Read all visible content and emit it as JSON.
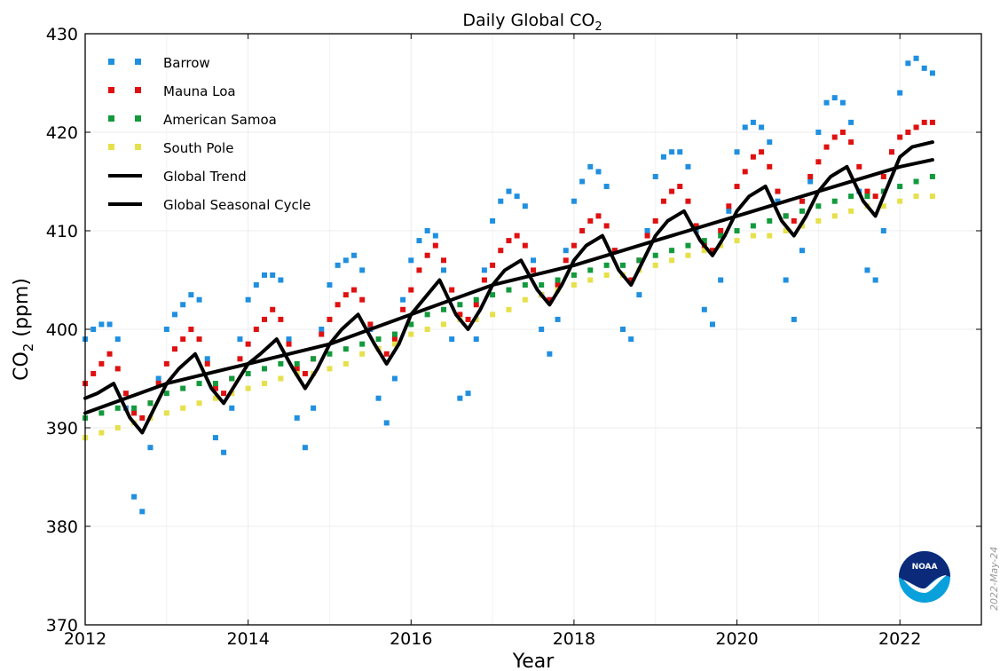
{
  "chart_data": {
    "type": "scatter",
    "title": "Daily Global CO",
    "title_subscript": "2",
    "xlabel": "Year",
    "ylabel": "CO",
    "ylabel_subscript": "2",
    "ylabel_unit": "(ppm)",
    "xlim": [
      2012,
      2023
    ],
    "ylim": [
      370,
      430
    ],
    "x_ticks": [
      2012,
      2014,
      2016,
      2018,
      2020,
      2022
    ],
    "y_ticks": [
      370,
      380,
      390,
      400,
      410,
      420,
      430
    ],
    "grid": true,
    "legend_position": "top-left",
    "date_stamp": "2022-May-24",
    "logo": "NOAA",
    "series": [
      {
        "name": "Barrow",
        "kind": "points",
        "color": "#1f8fe0",
        "x": [
          2012.0,
          2012.1,
          2012.2,
          2012.3,
          2012.4,
          2012.5,
          2012.6,
          2012.7,
          2012.8,
          2012.9,
          2013.0,
          2013.1,
          2013.2,
          2013.3,
          2013.4,
          2013.5,
          2013.6,
          2013.7,
          2013.8,
          2013.9,
          2014.0,
          2014.1,
          2014.2,
          2014.3,
          2014.4,
          2014.5,
          2014.6,
          2014.7,
          2014.8,
          2014.9,
          2015.0,
          2015.1,
          2015.2,
          2015.3,
          2015.4,
          2015.5,
          2015.6,
          2015.7,
          2015.8,
          2015.9,
          2016.0,
          2016.1,
          2016.2,
          2016.3,
          2016.4,
          2016.5,
          2016.6,
          2016.7,
          2016.8,
          2016.9,
          2017.0,
          2017.1,
          2017.2,
          2017.3,
          2017.4,
          2017.5,
          2017.6,
          2017.7,
          2017.8,
          2017.9,
          2018.0,
          2018.1,
          2018.2,
          2018.3,
          2018.4,
          2018.5,
          2018.6,
          2018.7,
          2018.8,
          2018.9,
          2019.0,
          2019.1,
          2019.2,
          2019.3,
          2019.4,
          2019.5,
          2019.6,
          2019.7,
          2019.8,
          2019.9,
          2020.0,
          2020.1,
          2020.2,
          2020.3,
          2020.4,
          2020.5,
          2020.6,
          2020.7,
          2020.8,
          2020.9,
          2021.0,
          2021.1,
          2021.2,
          2021.3,
          2021.4,
          2021.5,
          2021.6,
          2021.7,
          2021.8,
          2021.9,
          2022.0,
          2022.1,
          2022.2,
          2022.3,
          2022.4
        ],
        "y": [
          399.0,
          400.0,
          400.5,
          400.5,
          399.0,
          392.0,
          383.0,
          381.5,
          388.0,
          395.0,
          400.0,
          401.5,
          402.5,
          403.5,
          403.0,
          397.0,
          389.0,
          387.5,
          392.0,
          399.0,
          403.0,
          404.5,
          405.5,
          405.5,
          405.0,
          399.0,
          391.0,
          388.0,
          392.0,
          400.0,
          404.5,
          406.5,
          407.0,
          407.5,
          406.0,
          400.0,
          393.0,
          390.5,
          395.0,
          403.0,
          407.0,
          409.0,
          410.0,
          409.5,
          406.0,
          399.0,
          393.0,
          393.5,
          399.0,
          406.0,
          411.0,
          413.0,
          414.0,
          413.5,
          412.5,
          407.0,
          400.0,
          397.5,
          401.0,
          408.0,
          413.0,
          415.0,
          416.5,
          416.0,
          414.5,
          408.0,
          400.0,
          399.0,
          403.5,
          410.0,
          415.5,
          417.5,
          418.0,
          418.0,
          416.5,
          410.0,
          402.0,
          400.5,
          405.0,
          412.0,
          418.0,
          420.5,
          421.0,
          420.5,
          419.0,
          413.0,
          405.0,
          401.0,
          408.0,
          415.0,
          420.0,
          423.0,
          423.5,
          423.0,
          421.0,
          414.0,
          406.0,
          405.0,
          410.0,
          418.0,
          424.0,
          427.0,
          427.5,
          426.5,
          426.0
        ]
      },
      {
        "name": "Mauna Loa",
        "kind": "points",
        "color": "#e01010",
        "x": [
          2012.0,
          2012.1,
          2012.2,
          2012.3,
          2012.4,
          2012.5,
          2012.6,
          2012.7,
          2012.8,
          2012.9,
          2013.0,
          2013.1,
          2013.2,
          2013.3,
          2013.4,
          2013.5,
          2013.6,
          2013.7,
          2013.8,
          2013.9,
          2014.0,
          2014.1,
          2014.2,
          2014.3,
          2014.4,
          2014.5,
          2014.6,
          2014.7,
          2014.8,
          2014.9,
          2015.0,
          2015.1,
          2015.2,
          2015.3,
          2015.4,
          2015.5,
          2015.6,
          2015.7,
          2015.8,
          2015.9,
          2016.0,
          2016.1,
          2016.2,
          2016.3,
          2016.4,
          2016.5,
          2016.6,
          2016.7,
          2016.8,
          2016.9,
          2017.0,
          2017.1,
          2017.2,
          2017.3,
          2017.4,
          2017.5,
          2017.6,
          2017.7,
          2017.8,
          2017.9,
          2018.0,
          2018.1,
          2018.2,
          2018.3,
          2018.4,
          2018.5,
          2018.6,
          2018.7,
          2018.8,
          2018.9,
          2019.0,
          2019.1,
          2019.2,
          2019.3,
          2019.4,
          2019.5,
          2019.6,
          2019.7,
          2019.8,
          2019.9,
          2020.0,
          2020.1,
          2020.2,
          2020.3,
          2020.4,
          2020.5,
          2020.6,
          2020.7,
          2020.8,
          2020.9,
          2021.0,
          2021.1,
          2021.2,
          2021.3,
          2021.4,
          2021.5,
          2021.6,
          2021.7,
          2021.8,
          2021.9,
          2022.0,
          2022.1,
          2022.2,
          2022.3,
          2022.4
        ],
        "y": [
          394.5,
          395.5,
          396.5,
          397.5,
          396.0,
          393.5,
          391.5,
          391.0,
          392.5,
          394.5,
          396.5,
          398.0,
          399.0,
          400.0,
          399.0,
          396.5,
          394.0,
          393.5,
          395.0,
          397.0,
          398.5,
          400.0,
          401.0,
          402.0,
          401.0,
          398.5,
          396.0,
          395.5,
          397.0,
          399.5,
          401.0,
          402.5,
          403.5,
          404.0,
          403.0,
          400.5,
          398.0,
          397.5,
          399.0,
          402.0,
          404.0,
          406.0,
          407.5,
          408.5,
          407.0,
          404.0,
          401.5,
          401.0,
          402.5,
          405.0,
          406.5,
          408.0,
          409.0,
          409.5,
          408.5,
          406.0,
          403.5,
          403.0,
          404.5,
          407.0,
          408.5,
          410.0,
          411.0,
          411.5,
          410.5,
          408.0,
          405.5,
          405.0,
          407.0,
          409.5,
          411.0,
          413.0,
          414.0,
          414.5,
          413.0,
          410.5,
          408.5,
          408.0,
          410.0,
          412.5,
          414.5,
          416.0,
          417.5,
          418.0,
          416.5,
          414.0,
          411.5,
          411.0,
          413.0,
          415.5,
          417.0,
          418.5,
          419.5,
          420.0,
          419.0,
          416.5,
          414.0,
          413.5,
          415.5,
          418.0,
          419.5,
          420.0,
          420.5,
          421.0,
          421.0
        ]
      },
      {
        "name": "American Samoa",
        "kind": "points",
        "color": "#129a3c",
        "x": [
          2012.0,
          2012.2,
          2012.4,
          2012.6,
          2012.8,
          2013.0,
          2013.2,
          2013.4,
          2013.6,
          2013.8,
          2014.0,
          2014.2,
          2014.4,
          2014.6,
          2014.8,
          2015.0,
          2015.2,
          2015.4,
          2015.6,
          2015.8,
          2016.0,
          2016.2,
          2016.4,
          2016.6,
          2016.8,
          2017.0,
          2017.2,
          2017.4,
          2017.6,
          2017.8,
          2018.0,
          2018.2,
          2018.4,
          2018.6,
          2018.8,
          2019.0,
          2019.2,
          2019.4,
          2019.6,
          2019.8,
          2020.0,
          2020.2,
          2020.4,
          2020.6,
          2020.8,
          2021.0,
          2021.2,
          2021.4,
          2021.6,
          2021.8,
          2022.0,
          2022.2,
          2022.4
        ],
        "y": [
          391.0,
          391.5,
          392.0,
          392.0,
          392.5,
          393.5,
          394.0,
          394.5,
          394.5,
          395.0,
          395.5,
          396.0,
          396.5,
          396.5,
          397.0,
          397.5,
          398.0,
          398.5,
          399.0,
          399.5,
          400.5,
          401.5,
          402.0,
          402.5,
          403.0,
          403.5,
          404.0,
          404.5,
          404.5,
          405.0,
          405.5,
          406.0,
          406.5,
          406.5,
          407.0,
          407.5,
          408.0,
          408.5,
          409.0,
          409.5,
          410.0,
          410.5,
          411.0,
          411.5,
          412.0,
          412.5,
          413.0,
          413.5,
          413.5,
          414.0,
          414.5,
          415.0,
          415.5
        ]
      },
      {
        "name": "South Pole",
        "kind": "points",
        "color": "#e6e04a",
        "x": [
          2012.0,
          2012.2,
          2012.4,
          2012.6,
          2012.8,
          2013.0,
          2013.2,
          2013.4,
          2013.6,
          2013.8,
          2014.0,
          2014.2,
          2014.4,
          2014.6,
          2014.8,
          2015.0,
          2015.2,
          2015.4,
          2015.6,
          2015.8,
          2016.0,
          2016.2,
          2016.4,
          2016.6,
          2016.8,
          2017.0,
          2017.2,
          2017.4,
          2017.6,
          2017.8,
          2018.0,
          2018.2,
          2018.4,
          2018.6,
          2018.8,
          2019.0,
          2019.2,
          2019.4,
          2019.6,
          2019.8,
          2020.0,
          2020.2,
          2020.4,
          2020.6,
          2020.8,
          2021.0,
          2021.2,
          2021.4,
          2021.6,
          2021.8,
          2022.0,
          2022.2,
          2022.4
        ],
        "y": [
          389.0,
          389.5,
          390.0,
          390.5,
          391.0,
          391.5,
          392.0,
          392.5,
          393.0,
          393.5,
          394.0,
          394.5,
          395.0,
          395.5,
          395.5,
          396.0,
          396.5,
          397.5,
          398.0,
          398.5,
          399.5,
          400.0,
          400.5,
          401.0,
          401.0,
          401.5,
          402.0,
          403.0,
          403.5,
          404.0,
          404.5,
          405.0,
          405.5,
          405.5,
          406.0,
          406.5,
          407.0,
          407.5,
          408.0,
          408.5,
          409.0,
          409.5,
          409.5,
          410.0,
          410.5,
          411.0,
          411.5,
          412.0,
          412.5,
          412.5,
          413.0,
          413.5,
          413.5
        ]
      },
      {
        "name": "Global Trend",
        "kind": "line",
        "color": "#000000",
        "x": [
          2012.0,
          2013.0,
          2014.0,
          2015.0,
          2016.0,
          2017.0,
          2018.0,
          2019.0,
          2020.0,
          2021.0,
          2022.0,
          2022.4
        ],
        "y": [
          391.5,
          394.5,
          396.5,
          398.5,
          401.5,
          404.5,
          406.5,
          409.0,
          411.5,
          414.0,
          416.5,
          417.2
        ]
      },
      {
        "name": "Global Seasonal Cycle",
        "kind": "line",
        "color": "#000000",
        "x": [
          2012.0,
          2012.15,
          2012.35,
          2012.55,
          2012.7,
          2012.85,
          2013.0,
          2013.15,
          2013.35,
          2013.55,
          2013.7,
          2013.85,
          2014.0,
          2014.15,
          2014.35,
          2014.55,
          2014.7,
          2014.85,
          2015.0,
          2015.15,
          2015.35,
          2015.55,
          2015.7,
          2015.85,
          2016.0,
          2016.15,
          2016.35,
          2016.55,
          2016.7,
          2016.85,
          2017.0,
          2017.15,
          2017.35,
          2017.55,
          2017.7,
          2017.85,
          2018.0,
          2018.15,
          2018.35,
          2018.55,
          2018.7,
          2018.85,
          2019.0,
          2019.15,
          2019.35,
          2019.55,
          2019.7,
          2019.85,
          2020.0,
          2020.15,
          2020.35,
          2020.55,
          2020.7,
          2020.85,
          2021.0,
          2021.15,
          2021.35,
          2021.55,
          2021.7,
          2021.85,
          2022.0,
          2022.15,
          2022.4
        ],
        "y": [
          393.0,
          393.5,
          394.5,
          391.0,
          389.5,
          392.0,
          394.5,
          396.0,
          397.5,
          394.0,
          392.5,
          394.5,
          396.5,
          397.5,
          399.0,
          396.0,
          394.0,
          396.0,
          398.5,
          400.0,
          401.5,
          398.5,
          396.5,
          398.5,
          401.5,
          403.0,
          405.0,
          401.5,
          400.0,
          402.0,
          404.5,
          406.0,
          407.0,
          404.0,
          402.5,
          404.5,
          407.0,
          408.5,
          409.5,
          406.0,
          404.5,
          407.0,
          409.5,
          411.0,
          412.0,
          409.0,
          407.5,
          409.5,
          412.0,
          413.5,
          414.5,
          411.0,
          409.5,
          411.5,
          414.0,
          415.5,
          416.5,
          413.0,
          411.5,
          414.5,
          417.5,
          418.5,
          419.0
        ]
      }
    ]
  }
}
